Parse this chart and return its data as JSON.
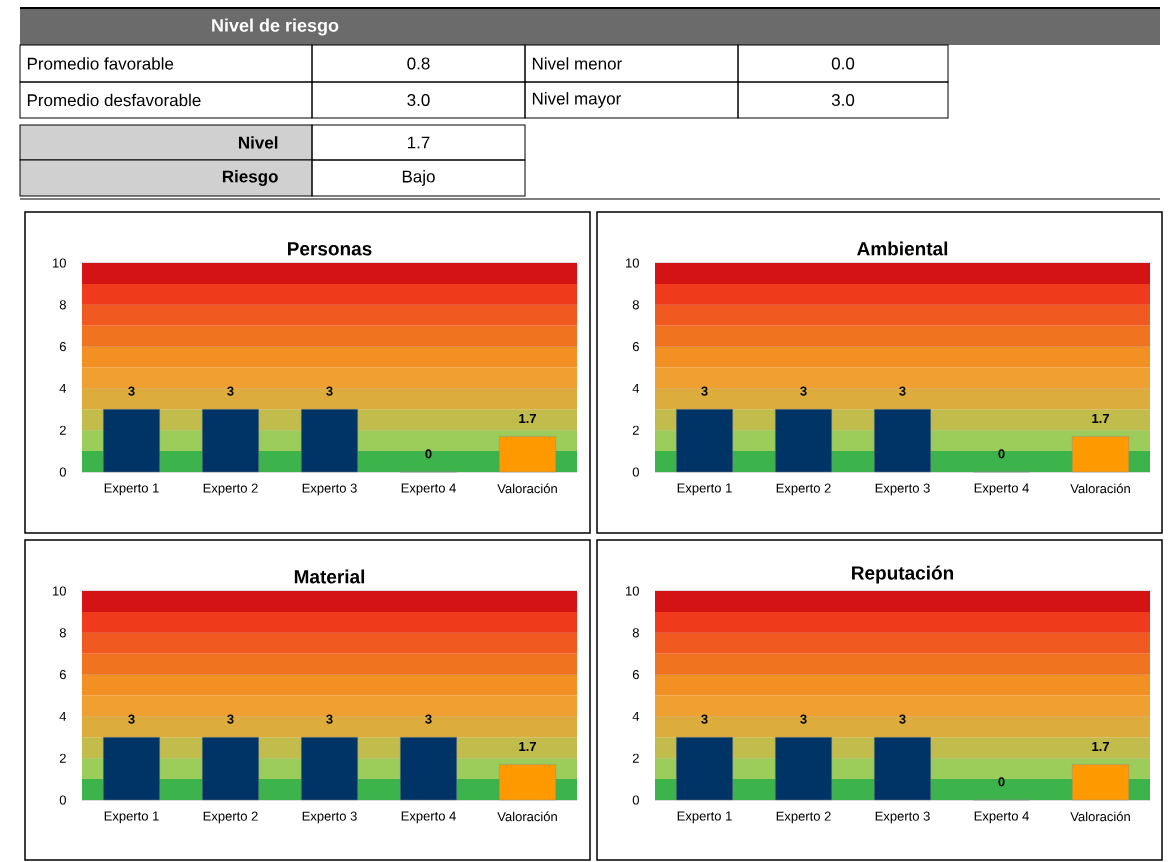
{
  "chart_data": [
    {
      "type": "other",
      "title": "Nivel de riesgo",
      "annotations": [
        "Promedio favorable",
        "0.8",
        "Nivel menor",
        "0.0",
        "Promedio desfavorable",
        "3.0",
        "Nivel mayor",
        "3.0",
        "Nivel",
        "1.7",
        "Riesgo",
        "Bajo"
      ]
    },
    {
      "type": "bar",
      "title": "Personas",
      "categories": [
        "Experto 1",
        "Experto 2",
        "Experto 3",
        "Experto 4",
        "Valoración"
      ],
      "values": [
        3,
        3,
        3,
        0,
        1.7
      ],
      "colors": [
        "#003366",
        "#003366",
        "#003366",
        "#003366",
        "#ff9900"
      ],
      "ylim": [
        0,
        10
      ],
      "yticks": [
        0,
        2,
        4,
        6,
        8,
        10
      ],
      "grid": "y",
      "data_labels": true,
      "bands": [
        {
          "axis": "y",
          "from": 0,
          "to": 1,
          "color": "#3cb44b"
        },
        {
          "axis": "y",
          "from": 1,
          "to": 2,
          "color": "#9ccc5a"
        },
        {
          "axis": "y",
          "from": 2,
          "to": 3,
          "color": "#c2bc4c"
        },
        {
          "axis": "y",
          "from": 3,
          "to": 4,
          "color": "#dcac3c"
        },
        {
          "axis": "y",
          "from": 4,
          "to": 5,
          "color": "#f0a030"
        },
        {
          "axis": "y",
          "from": 5,
          "to": 6,
          "color": "#f39024"
        },
        {
          "axis": "y",
          "from": 6,
          "to": 7,
          "color": "#f07420"
        },
        {
          "axis": "y",
          "from": 7,
          "to": 8,
          "color": "#f05a20"
        },
        {
          "axis": "y",
          "from": 8,
          "to": 9,
          "color": "#f03a1c"
        },
        {
          "axis": "y",
          "from": 9,
          "to": 10,
          "color": "#d41414"
        }
      ]
    },
    {
      "type": "bar",
      "title": "Ambiental",
      "categories": [
        "Experto 1",
        "Experto 2",
        "Experto 3",
        "Experto 4",
        "Valoración"
      ],
      "values": [
        3,
        3,
        3,
        0,
        1.7
      ],
      "colors": [
        "#003366",
        "#003366",
        "#003366",
        "#003366",
        "#ff9900"
      ],
      "ylim": [
        0,
        10
      ],
      "yticks": [
        0,
        2,
        4,
        6,
        8,
        10
      ],
      "grid": "y",
      "data_labels": true,
      "bands": [
        {
          "axis": "y",
          "from": 0,
          "to": 1,
          "color": "#3cb44b"
        },
        {
          "axis": "y",
          "from": 1,
          "to": 2,
          "color": "#9ccc5a"
        },
        {
          "axis": "y",
          "from": 2,
          "to": 3,
          "color": "#c2bc4c"
        },
        {
          "axis": "y",
          "from": 3,
          "to": 4,
          "color": "#dcac3c"
        },
        {
          "axis": "y",
          "from": 4,
          "to": 5,
          "color": "#f0a030"
        },
        {
          "axis": "y",
          "from": 5,
          "to": 6,
          "color": "#f39024"
        },
        {
          "axis": "y",
          "from": 6,
          "to": 7,
          "color": "#f07420"
        },
        {
          "axis": "y",
          "from": 7,
          "to": 8,
          "color": "#f05a20"
        },
        {
          "axis": "y",
          "from": 8,
          "to": 9,
          "color": "#f03a1c"
        },
        {
          "axis": "y",
          "from": 9,
          "to": 10,
          "color": "#d41414"
        }
      ]
    },
    {
      "type": "bar",
      "title": "Material",
      "categories": [
        "Experto 1",
        "Experto 2",
        "Experto 3",
        "Experto 4",
        "Valoración"
      ],
      "values": [
        3,
        3,
        3,
        3,
        1.7
      ],
      "colors": [
        "#003366",
        "#003366",
        "#003366",
        "#003366",
        "#ff9900"
      ],
      "ylim": [
        0,
        10
      ],
      "yticks": [
        0,
        2,
        4,
        6,
        8,
        10
      ],
      "grid": "y",
      "data_labels": true,
      "bands": [
        {
          "axis": "y",
          "from": 0,
          "to": 1,
          "color": "#3cb44b"
        },
        {
          "axis": "y",
          "from": 1,
          "to": 2,
          "color": "#9ccc5a"
        },
        {
          "axis": "y",
          "from": 2,
          "to": 3,
          "color": "#c2bc4c"
        },
        {
          "axis": "y",
          "from": 3,
          "to": 4,
          "color": "#dcac3c"
        },
        {
          "axis": "y",
          "from": 4,
          "to": 5,
          "color": "#f0a030"
        },
        {
          "axis": "y",
          "from": 5,
          "to": 6,
          "color": "#f39024"
        },
        {
          "axis": "y",
          "from": 6,
          "to": 7,
          "color": "#f07420"
        },
        {
          "axis": "y",
          "from": 7,
          "to": 8,
          "color": "#f05a20"
        },
        {
          "axis": "y",
          "from": 8,
          "to": 9,
          "color": "#f03a1c"
        },
        {
          "axis": "y",
          "from": 9,
          "to": 10,
          "color": "#d41414"
        }
      ]
    },
    {
      "type": "bar",
      "title": "Reputación",
      "categories": [
        "Experto 1",
        "Experto 2",
        "Experto 3",
        "Experto 4",
        "Valoración"
      ],
      "values": [
        3,
        3,
        3,
        0,
        1.7
      ],
      "colors": [
        "#003366",
        "#003366",
        "#003366",
        "#003366",
        "#ff9900"
      ],
      "ylim": [
        0,
        10
      ],
      "yticks": [
        0,
        2,
        4,
        6,
        8,
        10
      ],
      "grid": "y",
      "data_labels": true,
      "bands": [
        {
          "axis": "y",
          "from": 0,
          "to": 1,
          "color": "#3cb44b"
        },
        {
          "axis": "y",
          "from": 1,
          "to": 2,
          "color": "#9ccc5a"
        },
        {
          "axis": "y",
          "from": 2,
          "to": 3,
          "color": "#c2bc4c"
        },
        {
          "axis": "y",
          "from": 3,
          "to": 4,
          "color": "#dcac3c"
        },
        {
          "axis": "y",
          "from": 4,
          "to": 5,
          "color": "#f0a030"
        },
        {
          "axis": "y",
          "from": 5,
          "to": 6,
          "color": "#f39024"
        },
        {
          "axis": "y",
          "from": 6,
          "to": 7,
          "color": "#f07420"
        },
        {
          "axis": "y",
          "from": 7,
          "to": 8,
          "color": "#f05a20"
        },
        {
          "axis": "y",
          "from": 8,
          "to": 9,
          "color": "#f03a1c"
        },
        {
          "axis": "y",
          "from": 9,
          "to": 10,
          "color": "#d41414"
        }
      ]
    }
  ]
}
